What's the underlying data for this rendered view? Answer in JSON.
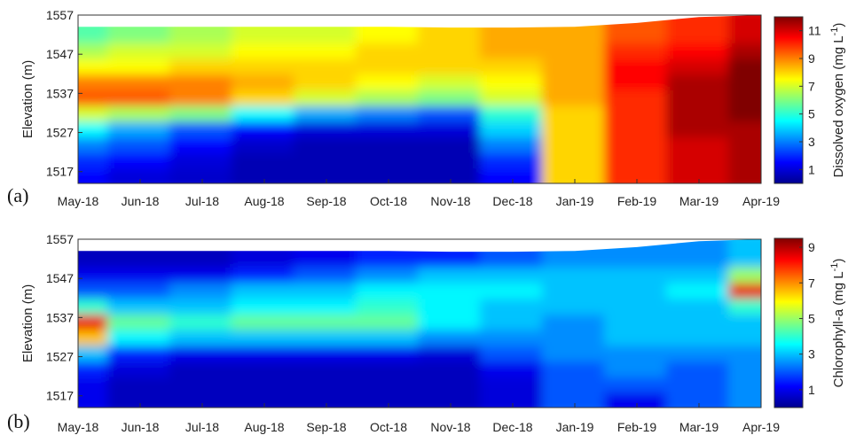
{
  "chart_data": [
    {
      "type": "heatmap",
      "panel_label": "(a)",
      "xlabel": "",
      "ylabel": "Elevation (m)",
      "x_ticks": [
        "May-18",
        "Jun-18",
        "Jul-18",
        "Aug-18",
        "Sep-18",
        "Oct-18",
        "Nov-18",
        "Dec-18",
        "Jan-19",
        "Feb-19",
        "Mar-19",
        "Apr-19"
      ],
      "y_ticks": [
        1517,
        1527,
        1537,
        1547,
        1557
      ],
      "ylim": [
        1514,
        1557
      ],
      "colorbar": {
        "label_main": "Dissolved oxygen (mg L",
        "label_unit_exp": "-1",
        "label_close": ")",
        "ticks": [
          1,
          3,
          5,
          7,
          9,
          11
        ],
        "range": [
          0,
          12
        ]
      },
      "surface_elevation": [
        1554,
        1554,
        1554,
        1554,
        1554,
        1554,
        1553.8,
        1553.8,
        1554,
        1555,
        1556.5,
        1557
      ],
      "layers": {
        "elevations": [
          1516,
          1520,
          1524,
          1528,
          1532,
          1536,
          1540,
          1544,
          1548,
          1552
        ],
        "values": [
          [
            1.5,
            2.0,
            3.0,
            4.5,
            7.0,
            9.5,
            9.0,
            7.5,
            6.5,
            5.5
          ],
          [
            1.0,
            1.5,
            2.5,
            3.5,
            6.5,
            9.5,
            9.0,
            7.5,
            7.0,
            6.0
          ],
          [
            0.8,
            1.0,
            1.5,
            2.5,
            6.0,
            9.0,
            9.0,
            8.0,
            7.0,
            6.5
          ],
          [
            0.5,
            0.5,
            0.8,
            1.5,
            4.5,
            8.0,
            8.5,
            8.0,
            7.5,
            7.0
          ],
          [
            0.5,
            0.5,
            0.5,
            1.0,
            3.5,
            7.0,
            8.0,
            8.0,
            7.5,
            7.0
          ],
          [
            0.5,
            0.5,
            0.5,
            1.0,
            3.0,
            6.5,
            7.5,
            8.0,
            8.0,
            7.5
          ],
          [
            0.5,
            0.5,
            0.5,
            1.0,
            2.5,
            6.0,
            7.0,
            8.0,
            8.0,
            8.0
          ],
          [
            1.5,
            2.0,
            3.0,
            4.0,
            5.0,
            7.0,
            7.5,
            8.0,
            8.5,
            8.5
          ],
          [
            8.0,
            8.0,
            8.0,
            8.0,
            8.0,
            8.5,
            8.5,
            8.5,
            8.5,
            8.5
          ],
          [
            10.0,
            10.0,
            10.0,
            10.0,
            10.0,
            10.0,
            10.5,
            10.5,
            10.0,
            9.5
          ],
          [
            11.0,
            11.0,
            11.0,
            11.5,
            11.5,
            11.5,
            11.5,
            11.0,
            10.5,
            10.0
          ],
          [
            11.5,
            11.5,
            11.5,
            11.5,
            12.0,
            12.0,
            12.0,
            12.0,
            11.5,
            11.0
          ]
        ]
      }
    },
    {
      "type": "heatmap",
      "panel_label": "(b)",
      "xlabel": "",
      "ylabel": "Elevation (m)",
      "x_ticks": [
        "May-18",
        "Jun-18",
        "Jul-18",
        "Aug-18",
        "Sep-18",
        "Oct-18",
        "Nov-18",
        "Dec-18",
        "Jan-19",
        "Feb-19",
        "Mar-19",
        "Apr-19"
      ],
      "y_ticks": [
        1517,
        1527,
        1537,
        1547,
        1557
      ],
      "ylim": [
        1514,
        1557
      ],
      "colorbar": {
        "label_main": "Chlorophyll-a (mg L",
        "label_unit_exp": "-1",
        "label_close": ")",
        "ticks": [
          1,
          3,
          5,
          7,
          9
        ],
        "range": [
          0,
          9.5
        ]
      },
      "surface_elevation": [
        1554,
        1554,
        1554,
        1554,
        1554,
        1554,
        1553.8,
        1553.8,
        1554,
        1555,
        1556.5,
        1557
      ],
      "layers": {
        "elevations": [
          1516,
          1520,
          1524,
          1528,
          1532,
          1536,
          1540,
          1544,
          1548,
          1552
        ],
        "values": [
          [
            1.0,
            1.0,
            1.5,
            3.0,
            6.5,
            8.5,
            4.0,
            2.0,
            1.0,
            0.5
          ],
          [
            0.5,
            0.5,
            0.8,
            1.5,
            3.5,
            4.5,
            3.0,
            2.0,
            1.0,
            0.5
          ],
          [
            0.5,
            0.5,
            0.5,
            1.0,
            3.0,
            4.0,
            3.0,
            2.5,
            1.0,
            0.5
          ],
          [
            0.5,
            0.5,
            0.5,
            1.0,
            3.0,
            4.5,
            3.5,
            3.0,
            1.5,
            0.8
          ],
          [
            0.5,
            0.5,
            0.5,
            1.0,
            3.0,
            4.5,
            3.5,
            3.0,
            2.0,
            1.0
          ],
          [
            0.5,
            0.5,
            0.5,
            1.0,
            3.0,
            4.5,
            4.0,
            3.5,
            2.5,
            1.5
          ],
          [
            0.5,
            0.5,
            0.5,
            0.8,
            2.5,
            3.5,
            3.5,
            3.5,
            3.0,
            1.5
          ],
          [
            0.8,
            0.8,
            1.0,
            2.0,
            2.5,
            3.0,
            3.0,
            3.5,
            3.0,
            2.0
          ],
          [
            2.0,
            2.0,
            2.0,
            2.5,
            2.5,
            2.5,
            3.0,
            3.0,
            3.0,
            2.5
          ],
          [
            1.0,
            2.0,
            2.5,
            2.5,
            3.0,
            3.0,
            3.0,
            3.0,
            3.0,
            2.5
          ],
          [
            2.0,
            2.0,
            2.0,
            2.5,
            3.0,
            3.0,
            3.0,
            3.5,
            3.0,
            2.5
          ],
          [
            2.5,
            2.5,
            2.5,
            2.5,
            3.0,
            3.0,
            4.0,
            8.5,
            5.0,
            3.0
          ]
        ]
      }
    }
  ]
}
